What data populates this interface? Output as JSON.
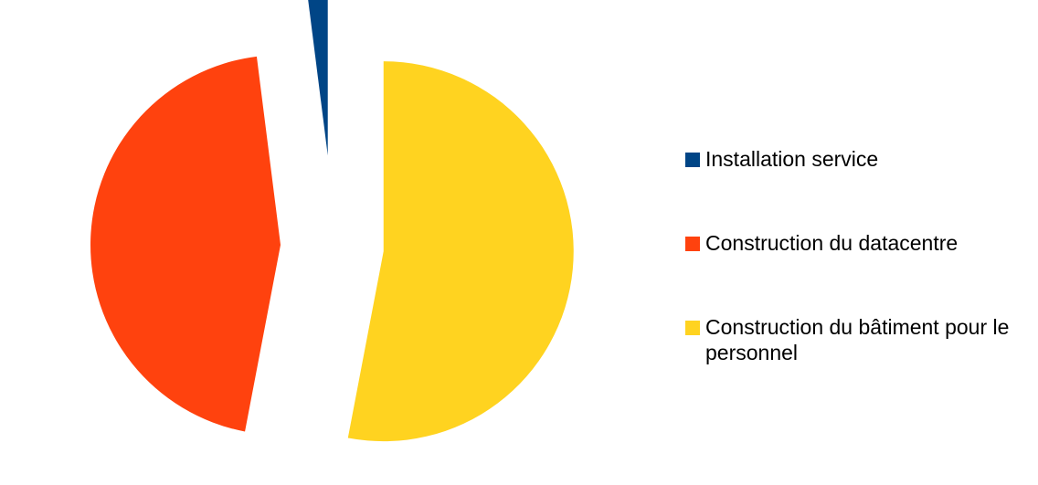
{
  "chart_data": {
    "type": "pie",
    "title": "",
    "exploded": true,
    "legend_position": "right",
    "slices": [
      {
        "label": "Installation service",
        "value": 2,
        "color": "#004586"
      },
      {
        "label": "Construction du datacentre",
        "value": 45,
        "color": "#ff420e"
      },
      {
        "label": "Construction du bâtiment pour le personnel",
        "value": 53,
        "color": "#ffd320"
      }
    ]
  }
}
